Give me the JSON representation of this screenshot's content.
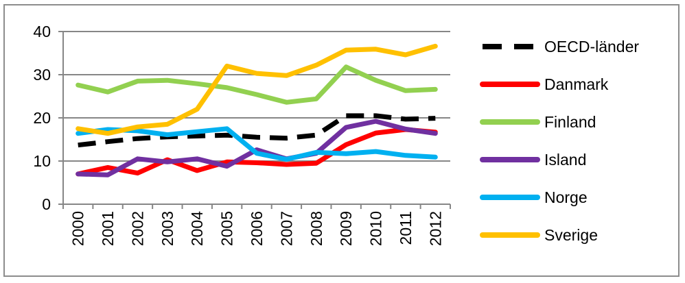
{
  "chart_data": {
    "type": "line",
    "title": "",
    "xlabel": "",
    "ylabel": "",
    "categories": [
      "2000",
      "2001",
      "2002",
      "2003",
      "2004",
      "2005",
      "2006",
      "2007",
      "2008",
      "2009",
      "2010",
      "2011",
      "2012"
    ],
    "ylim": [
      0,
      40
    ],
    "yticks": [
      "0",
      "10",
      "20",
      "30",
      "40"
    ],
    "grid": true,
    "legend_position": "right",
    "series": [
      {
        "name": "OECD-länder",
        "color": "#000000",
        "dashed": true,
        "values": [
          13.7,
          14.5,
          15.2,
          15.6,
          15.8,
          16.0,
          15.5,
          15.3,
          16.0,
          20.5,
          20.5,
          19.7,
          19.9
        ]
      },
      {
        "name": "Danmark",
        "color": "#ff0000",
        "dashed": false,
        "values": [
          7.0,
          8.5,
          7.2,
          10.3,
          7.8,
          9.8,
          9.6,
          9.2,
          9.5,
          13.8,
          16.5,
          17.3,
          16.7
        ]
      },
      {
        "name": "Finland",
        "color": "#92d050",
        "dashed": false,
        "values": [
          27.6,
          26.0,
          28.5,
          28.7,
          27.9,
          27.0,
          25.4,
          23.6,
          24.4,
          31.8,
          28.7,
          26.3,
          26.6
        ]
      },
      {
        "name": "Island",
        "color": "#7030a0",
        "dashed": false,
        "values": [
          7.0,
          6.8,
          10.5,
          9.8,
          10.5,
          8.8,
          12.6,
          10.5,
          11.8,
          17.8,
          19.2,
          17.4,
          16.4
        ]
      },
      {
        "name": "Norge",
        "color": "#00b0f0",
        "dashed": false,
        "values": [
          16.4,
          17.3,
          17.0,
          16.1,
          16.8,
          17.5,
          11.8,
          10.4,
          12.0,
          11.7,
          12.2,
          11.3,
          10.9
        ]
      },
      {
        "name": "Sverige",
        "color": "#ffc000",
        "dashed": false,
        "values": [
          17.5,
          16.4,
          17.9,
          18.5,
          22.0,
          32.0,
          30.3,
          29.8,
          32.2,
          35.7,
          35.9,
          34.6,
          36.6
        ]
      }
    ]
  }
}
